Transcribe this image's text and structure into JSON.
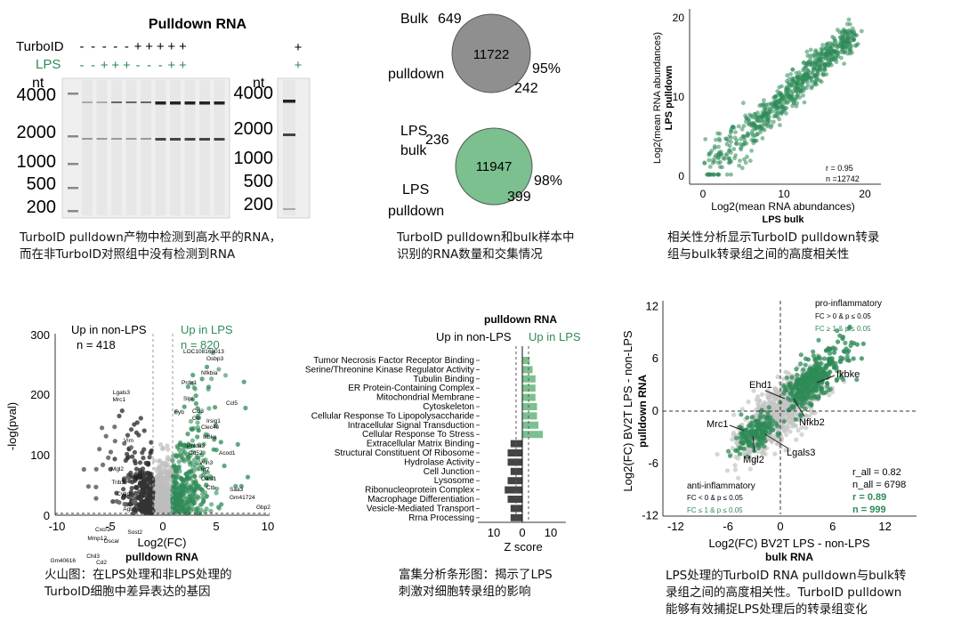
{
  "colors": {
    "green": "#2e8b57",
    "green_light": "#7cc08f",
    "grey": "#8c8c8c",
    "dark": "#333333"
  },
  "gel": {
    "title": "Pulldown RNA",
    "row_labels": {
      "turboid": "TurboID",
      "lps": "LPS"
    },
    "turboid_signs": [
      "-",
      "-",
      "-",
      "-",
      "-",
      "+",
      "+",
      "+",
      "+",
      "+"
    ],
    "lps_signs": [
      "-",
      "-",
      "+",
      "+",
      "+",
      "-",
      "-",
      "-",
      "+",
      "+"
    ],
    "side_turboid": "+",
    "side_lps": "+",
    "unit": "nt",
    "ladder": [
      "4000",
      "2000",
      "1000",
      "500",
      "200"
    ],
    "caption": [
      "TurboID pulldown产物中检测到高水平的RNA，",
      "而在非TurboID对照组中没有检测到RNA"
    ]
  },
  "venn": {
    "top": {
      "bulk_label": "Bulk",
      "bulk_value": "649",
      "center_value": "11722",
      "percent": "95%",
      "pulldown_label": "pulldown",
      "pulldown_value": "242"
    },
    "bottom": {
      "bulk_label_1": "LPS",
      "bulk_label_2": "bulk",
      "bulk_value": "236",
      "center_value": "11947",
      "percent": "98%",
      "pulldown_label_1": "LPS",
      "pulldown_label_2": "pulldown",
      "pulldown_value": "399"
    },
    "caption": [
      "TurboID pulldown和bulk样本中",
      "识别的RNA数量和交集情况"
    ]
  },
  "scatter": {
    "ylabel_1": "Log2(mean RNA abundances)",
    "ylabel_2": "LPS pulldown",
    "xlabel_1": "Log2(mean RNA abundances)",
    "xlabel_2": "LPS bulk",
    "xticks": [
      "0",
      "10",
      "20"
    ],
    "yticks": [
      "0",
      "10",
      "20"
    ],
    "stat_r": "r = 0.95",
    "stat_n": "n =12742",
    "caption": [
      "相关性分析显示TurboID pulldown转录",
      "组与bulk转录组之间的高度相关性"
    ]
  },
  "volcano": {
    "left_title_1": "Up in non-LPS",
    "left_title_2": "n = 418",
    "right_title_1": "Up in LPS",
    "right_title_2": "n = 820",
    "ylabel": "-log(pval)",
    "xlabel": "Log2(FC)",
    "xlabel_2": "pulldown RNA",
    "xticks": [
      "-10",
      "-5",
      "0",
      "5",
      "10"
    ],
    "yticks": [
      "0",
      "100",
      "200",
      "300"
    ],
    "genes_left": [
      "Lgals3",
      "Mrc1",
      "Vim",
      "Mgl2",
      "Trib3",
      "Cytip",
      "Agt",
      "Cxcr2",
      "Mmp12",
      "Oscar",
      "Chil3",
      "Gm40616",
      "Cd2",
      "Igf1",
      "Sost2"
    ],
    "genes_right": [
      "LOC108169013",
      "Osbp3",
      "Nfkbia",
      "Prdx1",
      "Slpi",
      "Ccl5",
      "Fyb",
      "Ccl3",
      "Gsr",
      "Irsig1",
      "Clec4e",
      "Ikbke",
      "Phlda3",
      "Cd52",
      "Acod1",
      "Vnn3",
      "Irf7",
      "Oasl1",
      "Ctb",
      "Saa3",
      "Gm41724",
      "Gbp2"
    ],
    "caption": [
      "火山图：在LPS处理和非LPS处理的",
      "TurboID细胞中差异表达的基因"
    ]
  },
  "enrichment": {
    "title": "pulldown RNA",
    "left_header": "Up in non-LPS",
    "right_header": "Up in LPS",
    "xlabel": "Z score",
    "xticks": [
      "10",
      "0",
      "10"
    ],
    "caption": [
      "富集分析条形图：揭示了LPS",
      "刺激对细胞转录组的影响"
    ]
  },
  "chart_data": [
    {
      "type": "bar",
      "title": "pulldown RNA",
      "xlabel": "Z score",
      "categories": [
        "Tumor Necrosis Factor Receptor Binding",
        "Serine/Threonine Kinase Regulator Activity",
        "Tubulin Binding",
        "ER Protein-Containing Complex",
        "Mitochondrial Membrane",
        "Cytoskeleton",
        "Cellular Response To Lipopolysaccharide",
        "Intracellular Signal Transduction",
        "Cellular Response To Stress",
        "Extracellular Matrix Binding",
        "Structural Constituent Of Ribosome",
        "Hydrolase Activity",
        "Cell Junction",
        "Lysosome",
        "Ribonucleoprotein Complex",
        "Macrophage Differentiation",
        "Vesicle-Mediated Transport",
        "Rrna Processing"
      ],
      "values": [
        2.5,
        3.5,
        4.5,
        4.5,
        4.5,
        5,
        5,
        5.5,
        7,
        -4,
        -5,
        -5,
        -4,
        -5,
        -6,
        -5,
        -4,
        -4
      ],
      "xlim": [
        -12,
        12
      ]
    },
    {
      "type": "scatter",
      "title": "",
      "xlabel": "Log2(FC) BV2T LPS - non-LPS / bulk RNA",
      "ylabel": "Log2(FC) BV2T LPS - non-LPS / pulldown RNA",
      "xlim": [
        -14,
        14
      ],
      "ylim": [
        -14,
        14
      ],
      "xticks": [
        "-12",
        "-6",
        "0",
        "6",
        "12"
      ],
      "yticks": [
        "12",
        "6",
        "0",
        "-6",
        "-12"
      ],
      "labeled_genes": [
        "Ehd1",
        "Ikbke",
        "Nfkb2",
        "Mrc1",
        "Mgl2",
        "Lgals3"
      ],
      "legend_top": [
        "pro-inflammatory",
        "FC > 0 & p ≤ 0.05",
        "FC ≥ 1 & p ≤ 0.05"
      ],
      "legend_bottom": [
        "anti-inflammatory",
        "FC < 0 & p ≤ 0.05",
        "FC ≤ 1 & p ≤ 0.05"
      ],
      "stats": [
        "r_all = 0.82",
        "n_all = 6798",
        "r = 0.89",
        "n = 999"
      ],
      "caption": [
        "LPS处理的TurboID RNA pulldown与bulk转",
        "录组之间的高度相关性。TurboID pulldown",
        "能够有效捕捉LPS处理后的转录组变化"
      ]
    }
  ]
}
